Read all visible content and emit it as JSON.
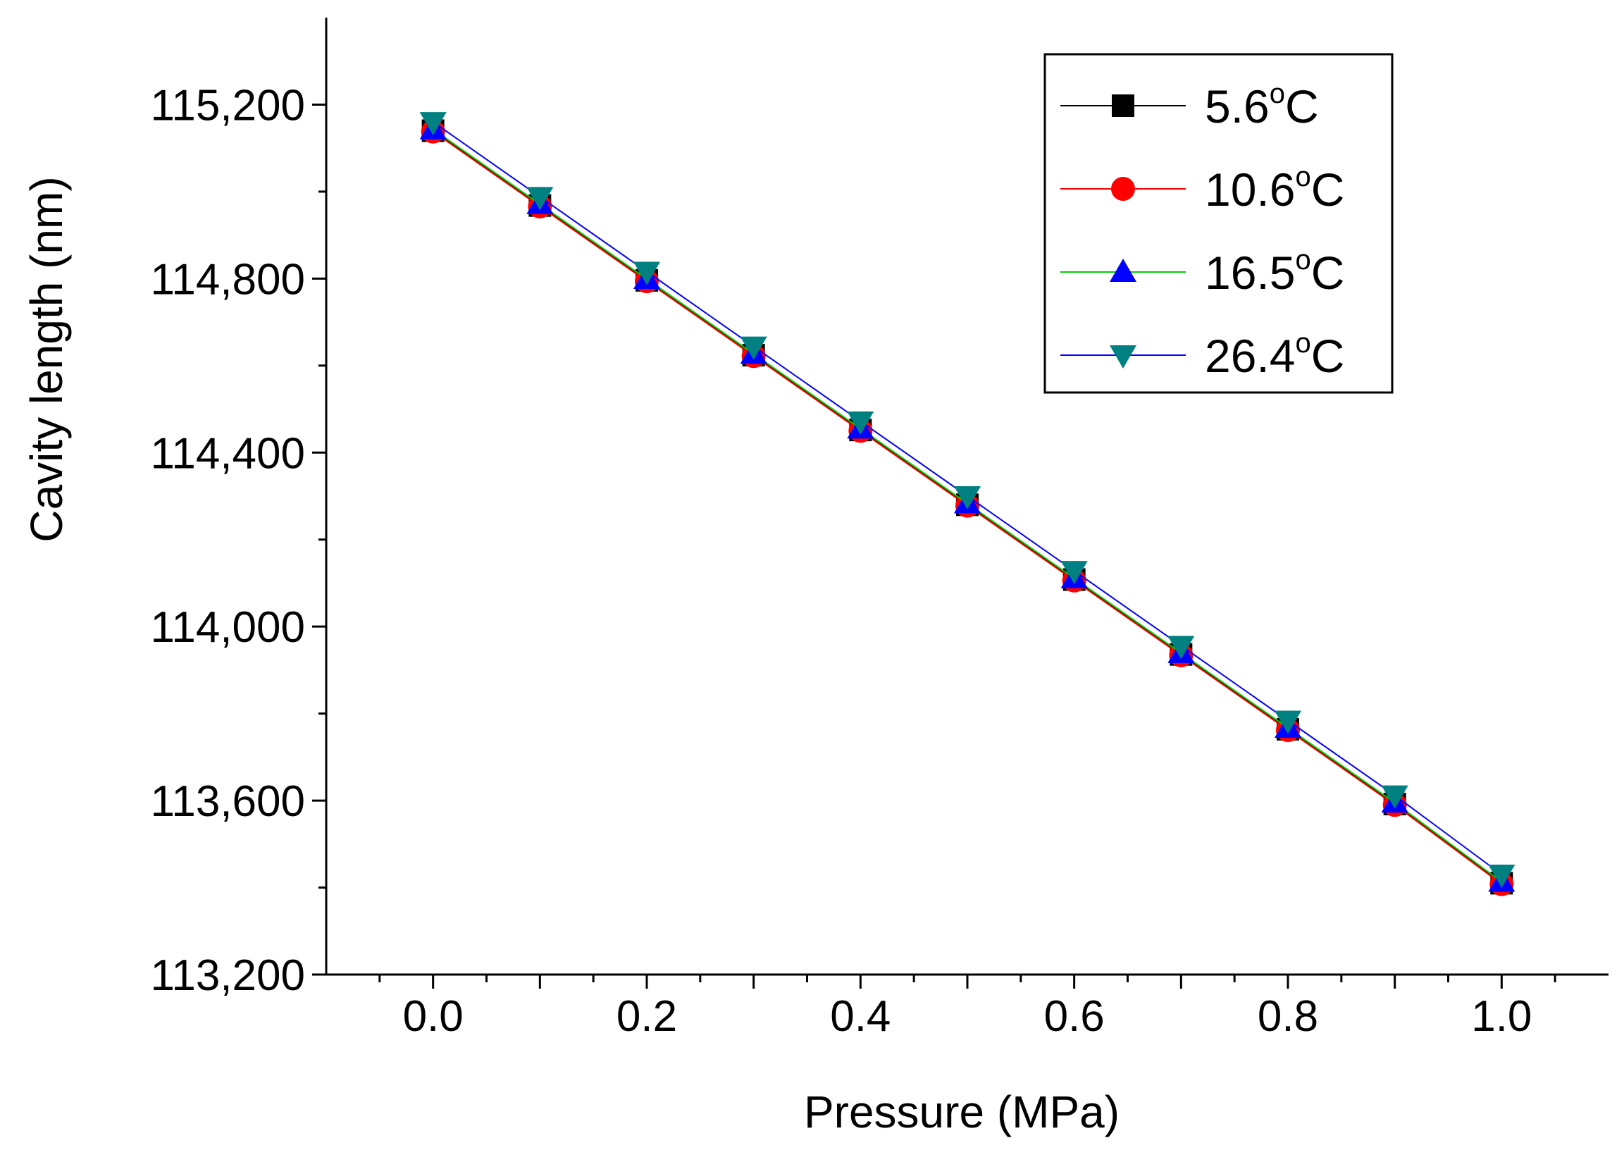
{
  "chart_data": {
    "type": "line",
    "title": "",
    "xlabel": "Pressure (MPa)",
    "ylabel": "Cavity length (nm)",
    "xlim": [
      -0.1,
      1.1
    ],
    "ylim": [
      113200,
      115400
    ],
    "x_ticks": [
      0.0,
      0.1,
      0.2,
      0.3,
      0.4,
      0.5,
      0.6,
      0.7,
      0.8,
      0.9,
      1.0
    ],
    "x_tick_labels": [
      "0.0",
      "0.2",
      "0.4",
      "0.6",
      "0.8",
      "1.0"
    ],
    "x_tick_label_values": [
      0.0,
      0.2,
      0.4,
      0.6,
      0.8,
      1.0
    ],
    "y_ticks_major": [
      113200,
      113600,
      114000,
      114400,
      114800,
      115200
    ],
    "y_tick_labels": [
      "113,200",
      "113,600",
      "114,000",
      "114,400",
      "114,800",
      "115,200"
    ],
    "y_ticks_minor": [
      113400,
      113800,
      114200,
      114600,
      115000
    ],
    "grid": false,
    "legend_position": "top-right",
    "x": [
      0.0,
      0.1,
      0.2,
      0.3,
      0.4,
      0.5,
      0.6,
      0.7,
      0.8,
      0.9,
      1.0
    ],
    "series": [
      {
        "name": "5.6°C",
        "label_main": "5.6",
        "label_sup": "o",
        "label_unit": "C",
        "line_color": "#000000",
        "marker_color": "#000000",
        "marker": "square",
        "values": [
          115140,
          114968,
          114796,
          114624,
          114452,
          114280,
          114108,
          113936,
          113764,
          113592,
          113410
        ]
      },
      {
        "name": "10.6°C",
        "label_main": "10.6",
        "label_sup": "o",
        "label_unit": "C",
        "line_color": "#ff0000",
        "marker_color": "#ff0000",
        "marker": "circle",
        "values": [
          115138,
          114966,
          114794,
          114622,
          114450,
          114278,
          114106,
          113934,
          113762,
          113590,
          113408
        ]
      },
      {
        "name": "16.5°C",
        "label_main": "16.5",
        "label_sup": "o",
        "label_unit": "C",
        "line_color": "#00cc00",
        "marker_color": "#0000ff",
        "marker": "triangle-up",
        "values": [
          115143,
          114971,
          114799,
          114627,
          114455,
          114283,
          114111,
          113939,
          113767,
          113595,
          113413
        ]
      },
      {
        "name": "26.4°C",
        "label_main": "26.4",
        "label_sup": "o",
        "label_unit": "C",
        "line_color": "#0000ff",
        "marker_color": "#008080",
        "marker": "triangle-down",
        "values": [
          115160,
          114988,
          114816,
          114644,
          114472,
          114300,
          114128,
          113956,
          113784,
          113612,
          113430
        ]
      }
    ]
  }
}
